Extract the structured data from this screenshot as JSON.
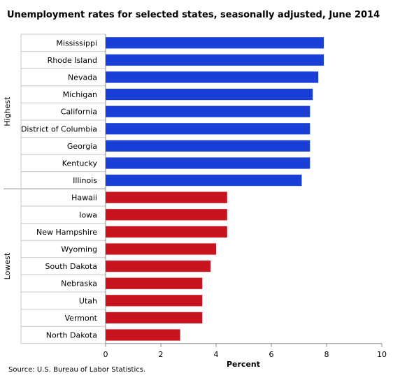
{
  "chart_data": {
    "type": "bar",
    "orientation": "horizontal",
    "title": "Unemployment rates for selected states, seasonally adjusted, June 2014",
    "xlabel": "Percent",
    "xlim": [
      0,
      10
    ],
    "xticks": [
      "0",
      "2",
      "4",
      "6",
      "8",
      "10"
    ],
    "grid": false,
    "groups": [
      {
        "name": "Highest",
        "color": "#1a3fd6",
        "categories": [
          "Mississippi",
          "Rhode Island",
          "Nevada",
          "Michigan",
          "California",
          "District of Columbia",
          "Georgia",
          "Kentucky",
          "Illinois"
        ],
        "values": [
          7.9,
          7.9,
          7.7,
          7.5,
          7.4,
          7.4,
          7.4,
          7.4,
          7.1
        ]
      },
      {
        "name": "Lowest",
        "color": "#c8141e",
        "categories": [
          "Hawaii",
          "Iowa",
          "New Hampshire",
          "Wyoming",
          "South Dakota",
          "Nebraska",
          "Utah",
          "Vermont",
          "North Dakota"
        ],
        "values": [
          4.4,
          4.4,
          4.4,
          4.0,
          3.8,
          3.5,
          3.5,
          3.5,
          2.7
        ]
      }
    ]
  },
  "source": "Source: U.S. Bureau of Labor Statistics."
}
